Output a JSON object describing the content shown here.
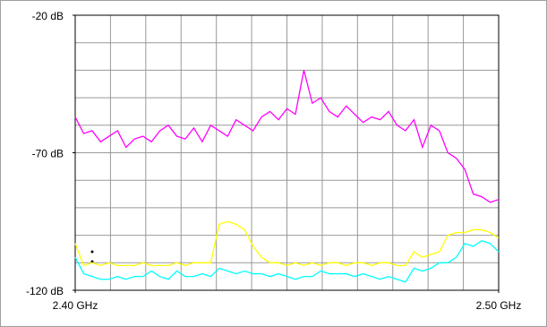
{
  "chart_data": {
    "type": "line",
    "x": [
      2.4,
      2.402,
      2.404,
      2.406,
      2.408,
      2.41,
      2.412,
      2.414,
      2.416,
      2.418,
      2.42,
      2.422,
      2.424,
      2.426,
      2.428,
      2.43,
      2.432,
      2.434,
      2.436,
      2.438,
      2.44,
      2.442,
      2.444,
      2.446,
      2.448,
      2.45,
      2.452,
      2.454,
      2.456,
      2.458,
      2.46,
      2.462,
      2.464,
      2.466,
      2.468,
      2.47,
      2.472,
      2.474,
      2.476,
      2.478,
      2.48,
      2.482,
      2.484,
      2.486,
      2.488,
      2.49,
      2.492,
      2.494,
      2.496,
      2.498,
      2.5
    ],
    "series": [
      {
        "color": "#ff00ff",
        "values": [
          -57,
          -63,
          -62,
          -66,
          -64,
          -62,
          -68,
          -65,
          -64,
          -66,
          -62,
          -60,
          -64,
          -65,
          -61,
          -66,
          -60,
          -62,
          -64,
          -58,
          -60,
          -62,
          -57,
          -55,
          -58,
          -54,
          -56,
          -40,
          -52,
          -50,
          -55,
          -57,
          -53,
          -56,
          -59,
          -57,
          -58,
          -55,
          -60,
          -62,
          -58,
          -68,
          -60,
          -62,
          -70,
          -72,
          -76,
          -85,
          -86,
          -88,
          -87
        ]
      },
      {
        "color": "#ffff00",
        "values": [
          -103,
          -111,
          -110,
          -111,
          -110,
          -111,
          -111,
          -111,
          -110,
          -111,
          -111,
          -111,
          -110,
          -111,
          -110,
          -110,
          -110,
          -96,
          -95,
          -96,
          -98,
          -104,
          -108,
          -110,
          -110,
          -111,
          -110,
          -111,
          -110,
          -111,
          -110,
          -110,
          -111,
          -110,
          -110,
          -111,
          -110,
          -110,
          -111,
          -111,
          -106,
          -108,
          -107,
          -106,
          -100,
          -99,
          -99,
          -98,
          -98,
          -99,
          -101
        ]
      },
      {
        "color": "#00ffff",
        "values": [
          -108,
          -114,
          -115,
          -116,
          -116,
          -115,
          -116,
          -115,
          -115,
          -113,
          -115,
          -116,
          -113,
          -115,
          -115,
          -114,
          -115,
          -112,
          -113,
          -114,
          -113,
          -114,
          -114,
          -115,
          -114,
          -115,
          -116,
          -115,
          -115,
          -113,
          -114,
          -114,
          -114,
          -115,
          -114,
          -115,
          -116,
          -115,
          -116,
          -117,
          -112,
          -113,
          -112,
          -110,
          -110,
          -108,
          -103,
          -104,
          -102,
          -103,
          -106
        ]
      }
    ],
    "xlim": [
      2.4,
      2.5
    ],
    "xticks": [
      {
        "value": 2.4,
        "label": "2.40 GHz"
      },
      {
        "value": 2.5,
        "label": "2.50 GHz"
      }
    ],
    "ylim": [
      -120,
      -20
    ],
    "yticks": [
      {
        "value": -20,
        "label": "-20 dB"
      },
      {
        "value": -70,
        "label": "-70 dB"
      },
      {
        "value": -120,
        "label": "-120 dB"
      }
    ],
    "grid": true
  }
}
